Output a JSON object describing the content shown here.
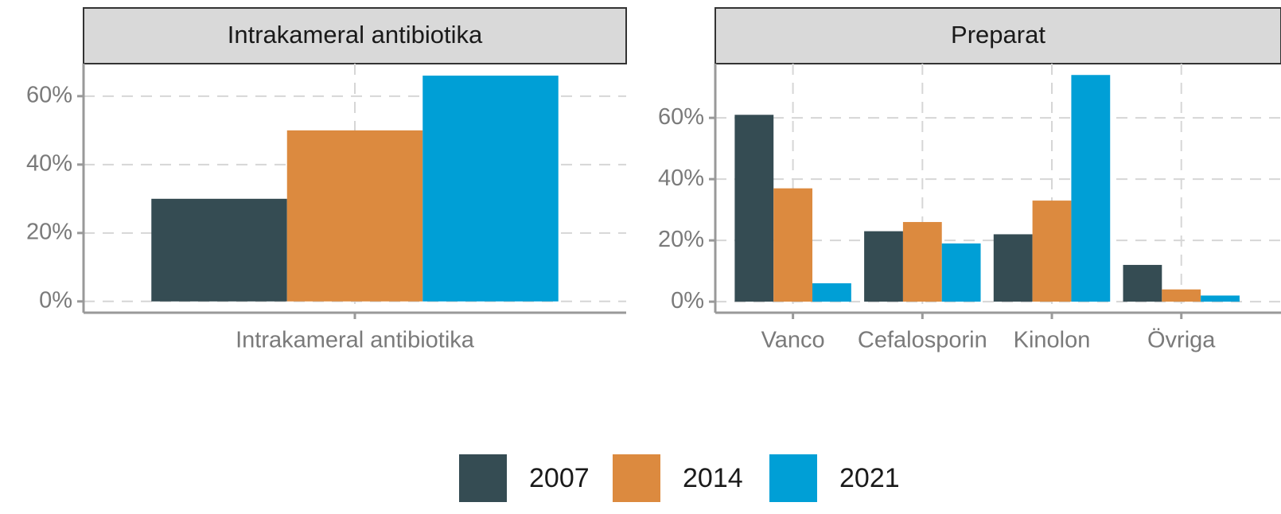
{
  "chart_data": [
    {
      "type": "bar",
      "title": "Intrakameral antibiotika",
      "categories": [
        "Intrakameral antibiotika"
      ],
      "series": [
        {
          "values": [
            30
          ]
        },
        {
          "values": [
            50
          ]
        },
        {
          "values": [
            66
          ]
        }
      ],
      "ylim": [
        -3.3,
        69.5
      ],
      "yticks": [
        {
          "value": 0,
          "label": "0%"
        },
        {
          "value": 20,
          "label": "20%"
        },
        {
          "value": 40,
          "label": "40%"
        },
        {
          "value": 60,
          "label": "60%"
        }
      ],
      "grid": true
    },
    {
      "type": "bar",
      "title": "Preparat",
      "categories": [
        "Vanco",
        "Cefalosporin",
        "Kinolon",
        "Övriga"
      ],
      "series": [
        {
          "values": [
            61,
            23,
            22,
            12
          ]
        },
        {
          "values": [
            37,
            26,
            33,
            4
          ]
        },
        {
          "values": [
            6,
            19,
            74,
            2
          ]
        }
      ],
      "ylim": [
        -3.6,
        77.7
      ],
      "yticks": [
        {
          "value": 0,
          "label": "0%"
        },
        {
          "value": 20,
          "label": "20%"
        },
        {
          "value": 40,
          "label": "40%"
        },
        {
          "value": 60,
          "label": "60%"
        }
      ],
      "grid": true
    }
  ],
  "legend": {
    "items": [
      {
        "name": "2007",
        "color": "#354c53"
      },
      {
        "name": "2014",
        "color": "#dc8a3f"
      },
      {
        "name": "2021",
        "color": "#009fd6"
      }
    ]
  }
}
